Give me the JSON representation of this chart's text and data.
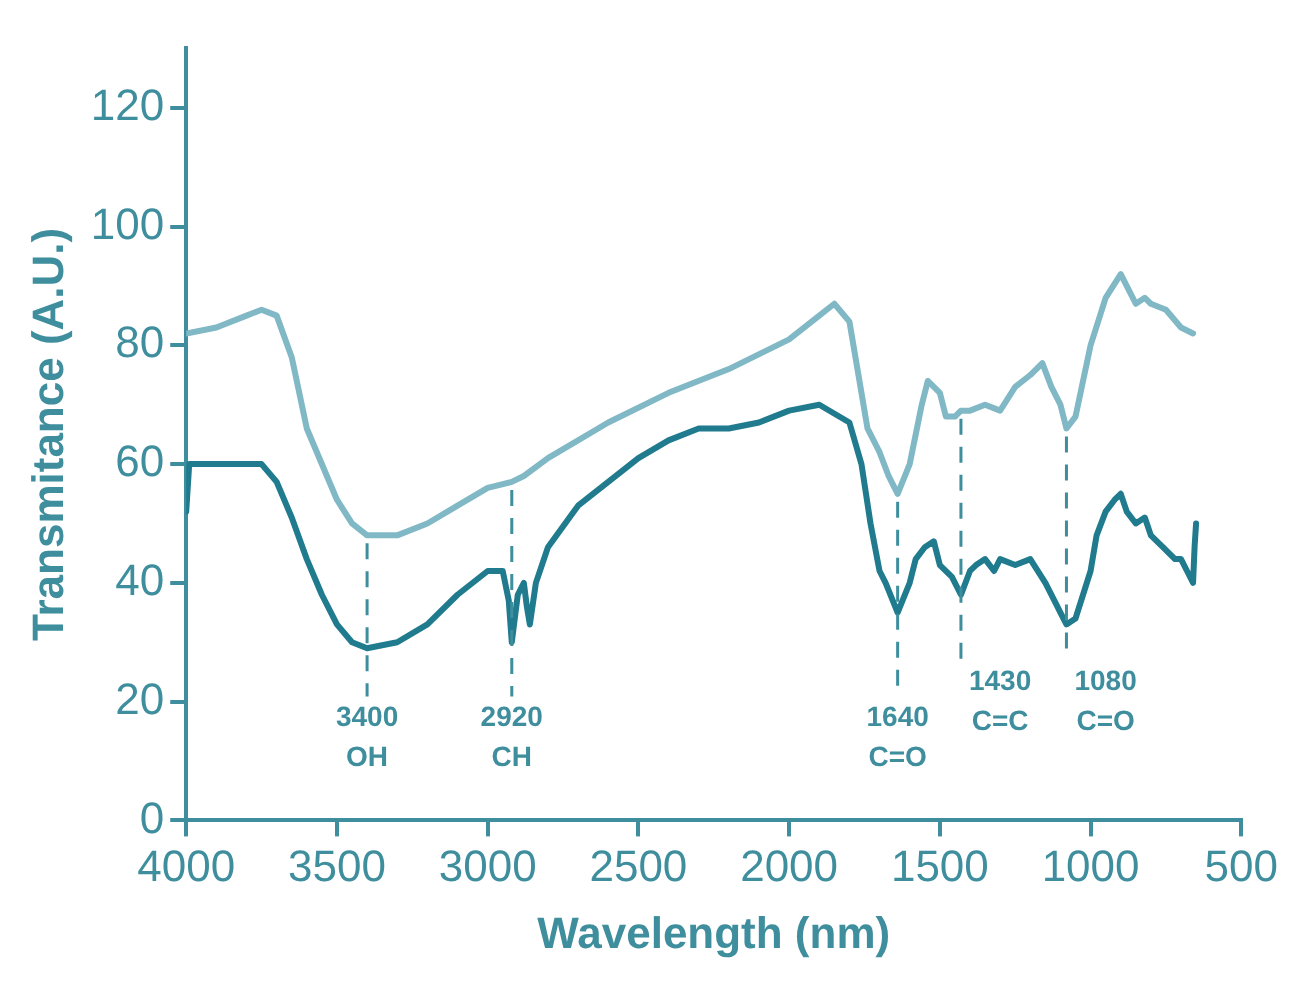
{
  "chart_data": {
    "type": "line",
    "xlabel": "Wavelength (nm)",
    "ylabel": "Transmitance (A.U.)",
    "xlim": [
      4000,
      500
    ],
    "xticks": [
      4000,
      3500,
      3000,
      2500,
      2000,
      1500,
      1000,
      500
    ],
    "ylim": [
      0,
      130
    ],
    "yticks": [
      0,
      20,
      40,
      60,
      80,
      100,
      120
    ],
    "grid": false,
    "legend": false,
    "marker": "none",
    "line_style": "solid",
    "series": [
      {
        "color": "#80b8c6",
        "x": [
          4000,
          3900,
          3800,
          3750,
          3700,
          3650,
          3600,
          3500,
          3450,
          3400,
          3300,
          3200,
          3100,
          3000,
          2920,
          2880,
          2800,
          2600,
          2400,
          2200,
          2000,
          1900,
          1850,
          1800,
          1770,
          1740,
          1700,
          1670,
          1640,
          1600,
          1560,
          1540,
          1500,
          1480,
          1450,
          1430,
          1400,
          1350,
          1300,
          1250,
          1200,
          1160,
          1130,
          1100,
          1080,
          1050,
          1000,
          950,
          900,
          870,
          850,
          820,
          800,
          750,
          700,
          660
        ],
        "values": [
          82,
          83,
          85,
          86,
          85,
          78,
          66,
          54,
          50,
          48,
          48,
          50,
          53,
          56,
          57,
          58,
          61,
          67,
          72,
          76,
          81,
          85,
          87,
          84,
          75,
          66,
          62,
          58,
          55,
          60,
          70,
          74,
          72,
          68,
          68,
          69,
          69,
          70,
          69,
          73,
          75,
          77,
          73,
          70,
          66,
          68,
          80,
          88,
          92,
          89,
          87,
          88,
          87,
          86,
          83,
          82
        ]
      },
      {
        "color": "#1f7b8d",
        "x": [
          4000,
          3990,
          3900,
          3800,
          3750,
          3700,
          3650,
          3600,
          3550,
          3500,
          3450,
          3400,
          3300,
          3200,
          3100,
          3000,
          2950,
          2930,
          2920,
          2900,
          2880,
          2870,
          2860,
          2840,
          2800,
          2700,
          2600,
          2500,
          2400,
          2300,
          2200,
          2100,
          2000,
          1900,
          1800,
          1760,
          1730,
          1700,
          1680,
          1640,
          1600,
          1580,
          1550,
          1520,
          1500,
          1460,
          1430,
          1400,
          1380,
          1350,
          1320,
          1300,
          1250,
          1200,
          1150,
          1120,
          1100,
          1080,
          1050,
          1000,
          980,
          950,
          920,
          900,
          880,
          850,
          820,
          800,
          760,
          720,
          700,
          680,
          660,
          655,
          650
        ],
        "values": [
          52,
          60,
          60,
          60,
          60,
          57,
          51,
          44,
          38,
          33,
          30,
          29,
          30,
          33,
          38,
          42,
          42,
          37,
          30,
          38,
          40,
          36,
          33,
          40,
          46,
          53,
          57,
          61,
          64,
          66,
          66,
          67,
          69,
          70,
          67,
          60,
          50,
          42,
          40,
          35,
          40,
          44,
          46,
          47,
          43,
          41,
          38,
          42,
          43,
          44,
          42,
          44,
          43,
          44,
          40,
          37,
          35,
          33,
          34,
          42,
          48,
          52,
          54,
          55,
          52,
          50,
          51,
          48,
          46,
          44,
          44,
          42,
          40,
          46,
          50
        ]
      }
    ],
    "ref_lines": [
      {
        "axis": "x",
        "value": 3400,
        "label": "3400 OH",
        "line_style": "dashed"
      },
      {
        "axis": "x",
        "value": 2920,
        "label": "2920 CH",
        "line_style": "dashed"
      },
      {
        "axis": "x",
        "value": 1640,
        "label": "1640 C=O",
        "line_style": "dashed"
      },
      {
        "axis": "x",
        "value": 1430,
        "label": "1430 C=C",
        "line_style": "dashed"
      },
      {
        "axis": "x",
        "value": 1080,
        "label": "1080 C=O",
        "line_style": "dashed"
      }
    ]
  }
}
